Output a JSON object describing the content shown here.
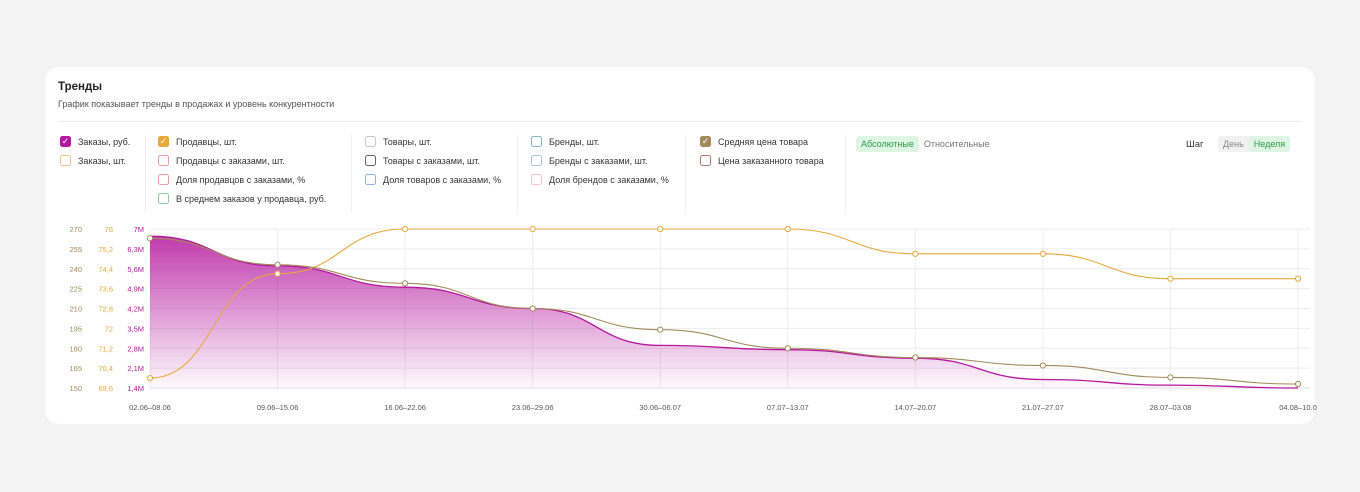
{
  "header": {
    "title": "Тренды",
    "subtitle": "График показывает тренды в продажах и уровень конкурентности"
  },
  "toggles": {
    "mode": [
      "Абсолютные",
      "Относительные"
    ],
    "mode_active": 0,
    "step_label": "Шаг",
    "step": [
      "День",
      "Неделя"
    ],
    "step_active": 1
  },
  "metric_groups": [
    [
      {
        "label": "Заказы, руб.",
        "checked": true,
        "color": "#b5179e"
      },
      {
        "label": "Заказы, шт.",
        "checked": false,
        "color": "#f2c08f"
      }
    ],
    [
      {
        "label": "Продавцы, шт.",
        "checked": true,
        "color": "#e8a83a"
      },
      {
        "label": "Продавцы с заказами, шт.",
        "checked": false,
        "color": "#e79aa0"
      },
      {
        "label": "Доля продавцов с заказами, %",
        "checked": false,
        "color": "#e79aa0"
      },
      {
        "label": "В среднем заказов у продавца, руб.",
        "checked": false,
        "color": "#8fc9a0"
      }
    ],
    [
      {
        "label": "Товары, шт.",
        "checked": false,
        "color": "#c8c8c8"
      },
      {
        "label": "Товары с заказами, шт.",
        "checked": false,
        "color": "#666666"
      },
      {
        "label": "Доля товаров с заказами, %",
        "checked": false,
        "color": "#8fb0e0"
      }
    ],
    [
      {
        "label": "Бренды, шт.",
        "checked": false,
        "color": "#7fb4c8"
      },
      {
        "label": "Бренды с заказами, шт.",
        "checked": false,
        "color": "#a8c8d0"
      },
      {
        "label": "Доля брендов с заказами, %",
        "checked": false,
        "color": "#f2c2d0"
      }
    ],
    [
      {
        "label": "Средняя цена товара",
        "checked": true,
        "color": "#a38a5a"
      },
      {
        "label": "Цена заказанного товара",
        "checked": false,
        "color": "#b07a74"
      }
    ]
  ],
  "chart_data": {
    "type": "line",
    "categories": [
      "02.06–08.06",
      "09.06–15.06",
      "16.06–22.06",
      "23.06–29.06",
      "30.06–06.07",
      "07.07–13.07",
      "14.07–20.07",
      "21.07–27.07",
      "28.07–03.08",
      "04.08–10.0"
    ],
    "axes": [
      {
        "id": "price",
        "ticks": [
          "150",
          "165",
          "180",
          "195",
          "210",
          "225",
          "240",
          "255",
          "270"
        ],
        "ylim": [
          150,
          270
        ],
        "color": "#a38a5a"
      },
      {
        "id": "sellers",
        "ticks": [
          "69,6",
          "70,4",
          "71,2",
          "72",
          "72,8",
          "73,6",
          "74,4",
          "75,2",
          "76"
        ],
        "ylim": [
          69.6,
          76
        ],
        "color": "#e8a83a"
      },
      {
        "id": "orders",
        "ticks": [
          "1,4M",
          "2,1M",
          "2,8M",
          "3,5M",
          "4,2M",
          "4,9M",
          "5,6M",
          "6,3M",
          "7M"
        ],
        "ylim": [
          1.4,
          7
        ],
        "color": "#b5179e"
      }
    ],
    "series": [
      {
        "name": "Заказы, руб.",
        "axis": "orders",
        "type": "area",
        "color": "#b5179e",
        "values": [
          6.75,
          5.7,
          4.95,
          4.2,
          2.9,
          2.75,
          2.45,
          1.7,
          1.5,
          1.4
        ]
      },
      {
        "name": "Продавцы, шт.",
        "axis": "sellers",
        "type": "line",
        "color": "#e8a83a",
        "values": [
          70.0,
          74.2,
          76.0,
          76.0,
          76.0,
          76.0,
          75.0,
          75.0,
          74.0,
          74.0
        ]
      },
      {
        "name": "Средняя цена товара",
        "axis": "price",
        "type": "line",
        "color": "#a38a5a",
        "values": [
          263,
          243,
          229,
          210,
          194,
          180,
          173,
          167,
          158,
          153
        ]
      }
    ],
    "grid": true
  }
}
